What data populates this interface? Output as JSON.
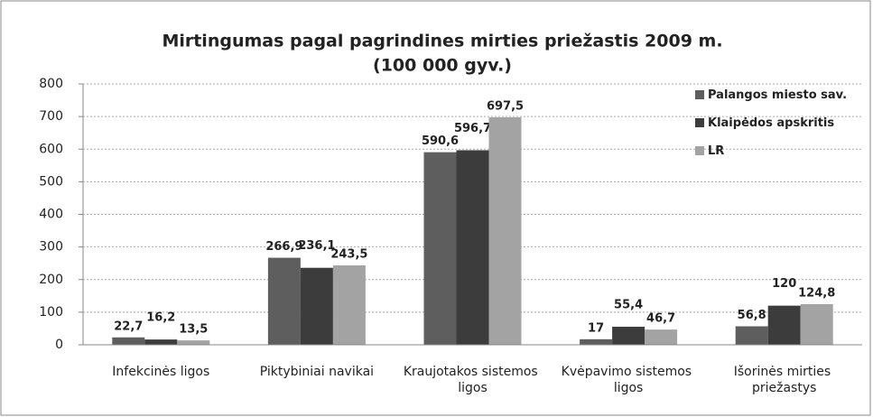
{
  "chart_data": {
    "type": "bar",
    "title": "Mirtingumas pagal pagrindines mirties priežastis 2009 m.",
    "subtitle": "(100 000 gyv.)",
    "categories": [
      "Infekcinės ligos",
      "Piktybiniai navikai",
      "Kraujotakos sistemos ligos",
      "Kvėpavimo sistemos ligos",
      "Išorinės mirties priežastys"
    ],
    "series": [
      {
        "name": "Palangos miesto sav.",
        "color": "#5e5e5e",
        "values": [
          22.7,
          266.9,
          590.6,
          17,
          56.8
        ],
        "value_labels": [
          "22,7",
          "266,9",
          "590,6",
          "17",
          "56,8"
        ]
      },
      {
        "name": "Klaipėdos apskritis",
        "color": "#3c3c3c",
        "values": [
          16.2,
          236.1,
          596.7,
          55.4,
          120
        ],
        "value_labels": [
          "16,2",
          "236,1",
          "596,7",
          "55,4",
          "120"
        ]
      },
      {
        "name": "LR",
        "color": "#a3a3a3",
        "values": [
          13.5,
          243.5,
          697.5,
          46.7,
          124.8
        ],
        "value_labels": [
          "13,5",
          "243,5",
          "697,5",
          "46,7",
          "124,8"
        ]
      }
    ],
    "ylim": [
      0,
      800
    ],
    "yticks": [
      0,
      100,
      200,
      300,
      400,
      500,
      600,
      700,
      800
    ],
    "grid": true,
    "legend": "top-right"
  }
}
